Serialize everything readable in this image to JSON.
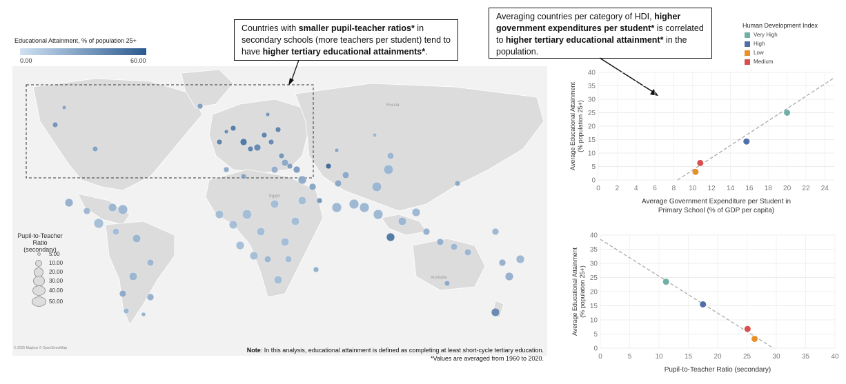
{
  "map": {
    "gradient_title": "Educational Attainment, % of population 25+",
    "gradient_min": "0.00",
    "gradient_max": "60.00",
    "gradient_colors": [
      "#cfe1f2",
      "#2c5a8e"
    ],
    "size_legend_title_1": "Pupil-to-Teacher Ratio",
    "size_legend_title_2": "(secondary)",
    "size_legend": [
      "5.00",
      "10.00",
      "20.00",
      "30.00",
      "40.00",
      "50.00"
    ],
    "country_labels": [
      "Russia",
      "Egypt",
      "Australia"
    ],
    "attribution": "© 2025 Mapbox © OpenStreetMap"
  },
  "annotations": {
    "left_parts": [
      {
        "t": "Countries with ",
        "b": false
      },
      {
        "t": "smaller pupil-teacher ratios*",
        "b": true
      },
      {
        "t": " in secondary schools (more teachers per student) tend to have ",
        "b": false
      },
      {
        "t": "higher tertiary educational attainments*",
        "b": true
      },
      {
        "t": ".",
        "b": false
      }
    ],
    "right_parts": [
      {
        "t": "Averaging countries per category of HDI, ",
        "b": false
      },
      {
        "t": "higher government expenditures per student*",
        "b": true
      },
      {
        "t": " is correlated to ",
        "b": false
      },
      {
        "t": "higher tertiary educational attainment*",
        "b": true
      },
      {
        "t": " in the population.",
        "b": false
      }
    ]
  },
  "note": {
    "label": "Note",
    "line1": ": In this analysis, educational attainment is defined as completing at least short-cycle tertiary education.",
    "line2": "*Values are averaged from 1960 to 2020."
  },
  "hdi_legend": {
    "title": "Human Development Index",
    "items": [
      {
        "label": "Very High",
        "color": "#6fb0a6"
      },
      {
        "label": "High",
        "color": "#4f6fa8"
      },
      {
        "label": "Low",
        "color": "#e8912b"
      },
      {
        "label": "Medium",
        "color": "#d94f4f"
      }
    ]
  },
  "chart_data": [
    {
      "type": "scatter",
      "xlabel": "Average Government Expenditure per Student in Primary School (% of GDP per capita)",
      "ylabel": "Average Educational Attainment (% population 25+)",
      "xlim": [
        0,
        25
      ],
      "ylim": [
        0,
        40
      ],
      "xticks": [
        0,
        2,
        4,
        6,
        8,
        10,
        12,
        14,
        16,
        18,
        20,
        22,
        24
      ],
      "yticks": [
        0,
        5,
        10,
        15,
        20,
        25,
        30,
        35,
        40
      ],
      "points": [
        {
          "hdi": "Very High",
          "x": 20.0,
          "y": 25.0,
          "color": "#6fb0a6"
        },
        {
          "hdi": "High",
          "x": 15.7,
          "y": 14.3,
          "color": "#4f6fa8"
        },
        {
          "hdi": "Medium",
          "x": 10.8,
          "y": 6.3,
          "color": "#d94f4f"
        },
        {
          "hdi": "Low",
          "x": 10.3,
          "y": 3.0,
          "color": "#e8912b"
        }
      ],
      "trendline": [
        [
          8.4,
          0
        ],
        [
          25,
          38
        ]
      ]
    },
    {
      "type": "scatter",
      "xlabel": "Pupil-to-Teacher Ratio (secondary)",
      "ylabel": "Average Educational Attainment (% population 25+)",
      "xlim": [
        0,
        40
      ],
      "ylim": [
        0,
        40
      ],
      "xticks": [
        0,
        5,
        10,
        15,
        20,
        25,
        30,
        35,
        40
      ],
      "yticks": [
        0,
        5,
        10,
        15,
        20,
        25,
        30,
        35,
        40
      ],
      "points": [
        {
          "hdi": "Very High",
          "x": 11.2,
          "y": 23.5,
          "color": "#6fb0a6"
        },
        {
          "hdi": "High",
          "x": 17.5,
          "y": 15.5,
          "color": "#4f6fa8"
        },
        {
          "hdi": "Medium",
          "x": 25.1,
          "y": 6.8,
          "color": "#d94f4f"
        },
        {
          "hdi": "Low",
          "x": 26.3,
          "y": 3.3,
          "color": "#e8912b"
        }
      ],
      "trendline": [
        [
          0,
          38.5
        ],
        [
          29.5,
          0
        ]
      ]
    }
  ]
}
